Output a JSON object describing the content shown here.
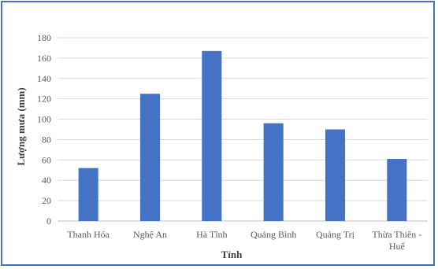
{
  "chart_data": {
    "type": "bar",
    "categories": [
      "Thanh Hóa",
      "Nghệ An",
      "Hà Tĩnh",
      "Quảng Bình",
      "Quảng Trị",
      [
        "Thừa Thiên -",
        "Huế"
      ]
    ],
    "values": [
      52,
      125,
      167,
      96,
      90,
      61
    ],
    "xlabel": "Tỉnh",
    "ylabel": "Lượng mưa (mm)",
    "ylim": [
      0,
      180
    ],
    "yticks": [
      0,
      20,
      40,
      60,
      80,
      100,
      120,
      140,
      160,
      180
    ],
    "grid": true,
    "legend": "none",
    "colors": {
      "bar": "#4472c4",
      "grid": "#d9d9d9",
      "axis": "#bfbfbf",
      "border": "#4472c4"
    }
  }
}
